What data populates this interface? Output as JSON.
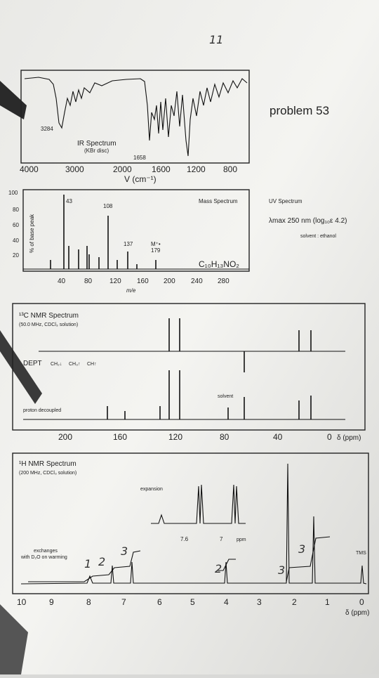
{
  "problem": "problem 53",
  "ir": {
    "title": "IR Spectrum",
    "medium": "(KBr disc)",
    "peak_labels": [
      3284,
      1658
    ],
    "axis_ticks": [
      4000,
      3000,
      2000,
      1600,
      1200,
      800
    ],
    "axis_label": "V (cm⁻¹)"
  },
  "mass": {
    "title": "Mass Spectrum",
    "y_label": "% of base peak",
    "y_ticks": [
      100,
      80,
      60,
      40,
      20
    ],
    "peak_labels": [
      43,
      108,
      137,
      "M⁺•",
      179
    ],
    "formula": "C₁₀H₁₃NO₂",
    "x_ticks": [
      40,
      80,
      120,
      160,
      200,
      240,
      280
    ],
    "x_label": "m/e"
  },
  "uv": {
    "title": "UV Spectrum",
    "lambda": "λmax 250 nm (log₁₀ε 4.2)",
    "solvent": "solvent : ethanol"
  },
  "c13": {
    "title": "¹³C NMR Spectrum",
    "conditions": "(50.0 MHz, CDCl₃ solution)",
    "dept": "DEPT",
    "dept_legend": [
      "CH₂↓",
      "CH₃↑",
      "CH↑"
    ],
    "solvent": "solvent",
    "decoupled": "proton decoupled",
    "x_ticks": [
      200,
      160,
      120,
      80,
      40,
      0
    ],
    "x_label": "δ (ppm)"
  },
  "h1": {
    "title": "¹H NMR Spectrum",
    "conditions": "(200 MHz, CDCl₃ solution)",
    "expansion": "expansion",
    "expansion_ticks": [
      7.6,
      7.0
    ],
    "expansion_unit": "ppm",
    "exchange": [
      "exchanges",
      "with D₂O on warming"
    ],
    "tms": "TMS",
    "x_ticks": [
      10,
      9,
      8,
      7,
      6,
      5,
      4,
      3,
      2,
      1,
      0
    ],
    "x_label": "δ (ppm)"
  },
  "handwritten": [
    "11",
    "1",
    "2",
    "3",
    "2",
    "3",
    "3"
  ]
}
